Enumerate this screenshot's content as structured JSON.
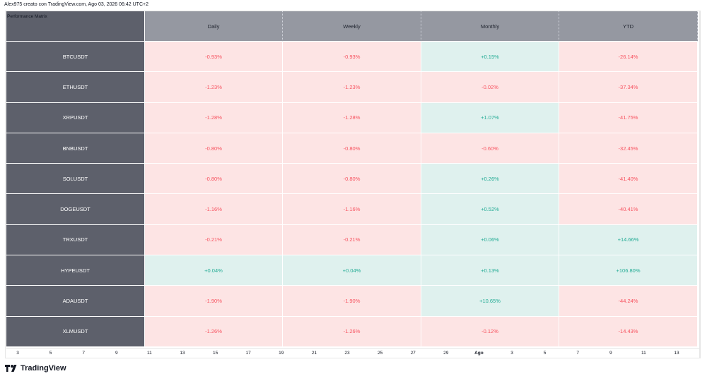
{
  "header": {
    "attribution": "Alex975 creato con TradingView.com, Ago 03, 2026 06:42 UTC+2"
  },
  "table": {
    "title": "Performance Matrix",
    "columns": [
      "Daily",
      "Weekly",
      "Monthly",
      "YTD"
    ],
    "rows": [
      {
        "symbol": "BTCUSDT",
        "values": [
          "-0.93%",
          "-0.93%",
          "+0.15%",
          "-26.14%"
        ]
      },
      {
        "symbol": "ETHUSDT",
        "values": [
          "-1.23%",
          "-1.23%",
          "-0.02%",
          "-37.34%"
        ]
      },
      {
        "symbol": "XRPUSDT",
        "values": [
          "-1.28%",
          "-1.28%",
          "+1.07%",
          "-41.75%"
        ]
      },
      {
        "symbol": "BNBUSDT",
        "values": [
          "-0.80%",
          "-0.80%",
          "-0.60%",
          "-32.45%"
        ]
      },
      {
        "symbol": "SOLUSDT",
        "values": [
          "-0.80%",
          "-0.80%",
          "+0.26%",
          "-41.40%"
        ]
      },
      {
        "symbol": "DOGEUSDT",
        "values": [
          "-1.16%",
          "-1.16%",
          "+0.52%",
          "-40.41%"
        ]
      },
      {
        "symbol": "TRXUSDT",
        "values": [
          "-0.21%",
          "-0.21%",
          "+0.06%",
          "+14.66%"
        ]
      },
      {
        "symbol": "HYPEUSDT",
        "values": [
          "+0.04%",
          "+0.04%",
          "+0.13%",
          "+106.80%"
        ]
      },
      {
        "symbol": "ADAUSDT",
        "values": [
          "-1.90%",
          "-1.90%",
          "+10.65%",
          "-44.24%"
        ]
      },
      {
        "symbol": "XLMUSDT",
        "values": [
          "-1.26%",
          "-1.26%",
          "-0.12%",
          "-14.43%"
        ]
      }
    ]
  },
  "x_axis": {
    "ticks": [
      "3",
      "5",
      "7",
      "9",
      "11",
      "13",
      "15",
      "17",
      "19",
      "21",
      "23",
      "25",
      "27",
      "29",
      "Ago",
      "3",
      "5",
      "7",
      "9",
      "11",
      "13"
    ],
    "emphasized": "Ago"
  },
  "colors": {
    "negative_text": "#f7525f",
    "negative_bg": "#fde4e4",
    "positive_text": "#22ab94",
    "positive_bg": "#dff1ee",
    "header_bg": "#9598a1",
    "row_header_bg": "#5d606b"
  },
  "brand": {
    "icon": "tradingview-logo-icon",
    "name": "TradingView"
  }
}
